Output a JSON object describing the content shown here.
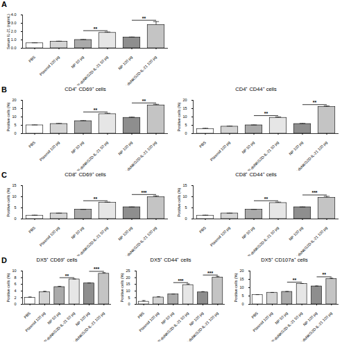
{
  "chart_data": [
    {
      "panel": "A",
      "type": "bar",
      "y_label": "Serum IL-21 (ng/mL)",
      "categories": [
        "PBS",
        "Plasmid 100 μg",
        "NP 50 μg",
        "NP-dsNKG2D-IL-21 50 μg",
        "NP 100 μg",
        "NP-dsNKG2D-IL-21 100 μg"
      ],
      "values": [
        0.6,
        0.8,
        1.0,
        1.85,
        1.3,
        2.8
      ],
      "errors": [
        0.05,
        0.05,
        0.05,
        0.1,
        0.05,
        0.4
      ],
      "colors": [
        "#ffffff",
        "#d4d4d4",
        "#aaaaaa",
        "#e6e6e6",
        "#8e8e8e",
        "#c4c4c4"
      ],
      "ylim": [
        0,
        4
      ],
      "yticks": [
        0,
        1,
        2,
        3,
        4
      ],
      "grid": false,
      "comparisons": [
        {
          "from": "NP 50 μg",
          "to": "NP-dsNKG2D-IL-21 50 μg",
          "label": "**"
        },
        {
          "from": "NP 100 μg",
          "to": "NP-dsNKG2D-IL-21 100 μg",
          "label": "**"
        }
      ]
    },
    {
      "panel": "B",
      "type": "bar",
      "title": "CD4⁺ CD69⁺ cells",
      "y_label": "Positive cells (%)",
      "categories": [
        "PBS",
        "Plasmid 100 μg",
        "NP 50 μg",
        "NP-dsNKG2D-IL-21 50 μg",
        "NP 100 μg",
        "NP-dsNKG2D-IL-21 100 μg"
      ],
      "values": [
        5,
        5.8,
        7.5,
        11.7,
        9.5,
        17
      ],
      "errors": [
        0.2,
        0.3,
        0.3,
        0.5,
        0.4,
        0.6
      ],
      "colors": [
        "#ffffff",
        "#d4d4d4",
        "#aaaaaa",
        "#e6e6e6",
        "#8e8e8e",
        "#c4c4c4"
      ],
      "ylim": [
        0,
        20
      ],
      "yticks": [
        0,
        5,
        10,
        15,
        20
      ],
      "grid": false,
      "comparisons": [
        {
          "from": "NP 50 μg",
          "to": "NP-dsNKG2D-IL-21 50 μg",
          "label": "**"
        },
        {
          "from": "NP 100 μg",
          "to": "NP-dsNKG2D-IL-21 100 μg",
          "label": "**"
        }
      ]
    },
    {
      "type": "bar",
      "title": "CD4⁺ CD44⁺ cells",
      "y_label": "Positive cells (%)",
      "categories": [
        "PBS",
        "Plasmid 100 μg",
        "NP 50 μg",
        "NP-dsNKG2D-IL-21 50 μg",
        "NP 100 μg",
        "NP-dsNKG2D-IL-21 100 μg"
      ],
      "values": [
        2.8,
        4.2,
        5,
        9.5,
        5.8,
        16
      ],
      "errors": [
        0.4,
        0.3,
        0.2,
        0.5,
        0.3,
        0.6
      ],
      "colors": [
        "#ffffff",
        "#d4d4d4",
        "#aaaaaa",
        "#e6e6e6",
        "#8e8e8e",
        "#c4c4c4"
      ],
      "ylim": [
        0,
        20
      ],
      "yticks": [
        0,
        5,
        10,
        15,
        20
      ],
      "grid": false,
      "comparisons": [
        {
          "from": "NP 50 μg",
          "to": "NP-dsNKG2D-IL-21 50 μg",
          "label": "**"
        },
        {
          "from": "NP 100 μg",
          "to": "NP-dsNKG2D-IL-21 100 μg",
          "label": "**"
        }
      ]
    },
    {
      "panel": "C",
      "type": "bar",
      "title": "CD8⁺ CD69⁺ cells",
      "y_label": "Positive cells (%)",
      "categories": [
        "PBS",
        "Plasmid 100 μg",
        "NP 50 μg",
        "NP-dsNKG2D-IL-21 50 μg",
        "NP 100 μg",
        "NP-dsNKG2D-IL-21 100 μg"
      ],
      "values": [
        1.5,
        2.5,
        4.2,
        7.3,
        5.3,
        9.8
      ],
      "errors": [
        0.2,
        0.1,
        0.1,
        0.3,
        0.1,
        0.6
      ],
      "colors": [
        "#ffffff",
        "#d4d4d4",
        "#aaaaaa",
        "#e6e6e6",
        "#8e8e8e",
        "#c4c4c4"
      ],
      "ylim": [
        0,
        15
      ],
      "yticks": [
        0,
        5,
        10,
        15
      ],
      "grid": false,
      "comparisons": [
        {
          "from": "NP 50 μg",
          "to": "NP-dsNKG2D-IL-21 50 μg",
          "label": "**"
        },
        {
          "from": "NP 100 μg",
          "to": "NP-dsNKG2D-IL-21 100 μg",
          "label": "***"
        }
      ]
    },
    {
      "type": "bar",
      "title": "CD8⁺ CD44⁺ cells",
      "y_label": "Positive cells (%)",
      "categories": [
        "PBS",
        "Plasmid 100 μg",
        "NP 50 μg",
        "NP-dsNKG2D-IL-21 50 μg",
        "NP 100 μg",
        "NP-dsNKG2D-IL-21 100 μg"
      ],
      "values": [
        1.5,
        2.5,
        4.2,
        7.2,
        5.3,
        9.6
      ],
      "errors": [
        0.2,
        0.1,
        0.1,
        0.4,
        0.1,
        0.6
      ],
      "colors": [
        "#ffffff",
        "#d4d4d4",
        "#aaaaaa",
        "#e6e6e6",
        "#8e8e8e",
        "#c4c4c4"
      ],
      "ylim": [
        0,
        15
      ],
      "yticks": [
        0,
        5,
        10,
        15
      ],
      "grid": false,
      "comparisons": [
        {
          "from": "NP 50 μg",
          "to": "NP-dsNKG2D-IL-21 50 μg",
          "label": "**"
        },
        {
          "from": "NP 100 μg",
          "to": "NP-dsNKG2D-IL-21 100 μg",
          "label": "***"
        }
      ]
    },
    {
      "panel": "D",
      "type": "bar",
      "title": "DX5⁺ CD69⁺ cells",
      "y_label": "Positive cells (%)",
      "categories": [
        "PBS",
        "Plasmid 100 μg",
        "NP 50 μg",
        "NP-dsNKG2D-IL-21 50 μg",
        "NP 100 μg",
        "NP-dsNKG2D-IL-21 100 μg"
      ],
      "values": [
        2,
        3.7,
        5.2,
        7.5,
        6.3,
        9.2
      ],
      "errors": [
        0.2,
        0.2,
        0.2,
        0.1,
        0.1,
        0.3
      ],
      "colors": [
        "#ffffff",
        "#d4d4d4",
        "#aaaaaa",
        "#e6e6e6",
        "#8e8e8e",
        "#c4c4c4"
      ],
      "ylim": [
        0,
        10
      ],
      "yticks": [
        0,
        2,
        4,
        6,
        8,
        10
      ],
      "grid": false,
      "comparisons": [
        {
          "from": "NP 50 μg",
          "to": "NP-dsNKG2D-IL-21 50 μg",
          "label": "**"
        },
        {
          "from": "NP 100 μg",
          "to": "NP-dsNKG2D-IL-21 100 μg",
          "label": "***"
        }
      ]
    },
    {
      "type": "bar",
      "title": "DX5⁺ CD44⁺ cells",
      "y_label": "Positive cells (%)",
      "categories": [
        "PBS",
        "Plasmid 100 μg",
        "NP 50 μg",
        "NP-dsNKG2D-IL-21 50 μg",
        "NP 100 μg",
        "NP-dsNKG2D-IL-21 100 μg"
      ],
      "values": [
        2,
        5.2,
        7.5,
        14.5,
        9,
        20.2
      ],
      "errors": [
        0.8,
        0.5,
        0.2,
        0.8,
        0.5,
        0.8
      ],
      "colors": [
        "#ffffff",
        "#d4d4d4",
        "#aaaaaa",
        "#e6e6e6",
        "#8e8e8e",
        "#c4c4c4"
      ],
      "ylim": [
        0,
        25
      ],
      "yticks": [
        0,
        5,
        10,
        15,
        20,
        25
      ],
      "grid": false,
      "comparisons": [
        {
          "from": "NP 50 μg",
          "to": "NP-dsNKG2D-IL-21 50 μg",
          "label": "***"
        },
        {
          "from": "NP 100 μg",
          "to": "NP-dsNKG2D-IL-21 100 μg",
          "label": "***"
        }
      ]
    },
    {
      "type": "bar",
      "title": "DX5⁺ CD107a⁺ cells",
      "y_label": "Positive cells (%)",
      "categories": [
        "PBS",
        "Plasmid 100 μg",
        "NP 50 μg",
        "NP-dsNKG2D-IL-21 50 μg",
        "NP 100 μg",
        "NP-dsNKG2D-IL-21 100 μg"
      ],
      "values": [
        5.7,
        7,
        7.5,
        12.3,
        10.8,
        15.2
      ],
      "errors": [
        0.1,
        0.1,
        0.2,
        0.2,
        0.2,
        0.5
      ],
      "colors": [
        "#ffffff",
        "#d4d4d4",
        "#aaaaaa",
        "#e6e6e6",
        "#8e8e8e",
        "#c4c4c4"
      ],
      "ylim": [
        0,
        20
      ],
      "yticks": [
        0,
        5,
        10,
        15,
        20
      ],
      "grid": false,
      "comparisons": [
        {
          "from": "NP 50 μg",
          "to": "NP-dsNKG2D-IL-21 50 μg",
          "label": "**"
        },
        {
          "from": "NP 100 μg",
          "to": "NP-dsNKG2D-IL-21 100 μg",
          "label": "**"
        }
      ]
    }
  ]
}
